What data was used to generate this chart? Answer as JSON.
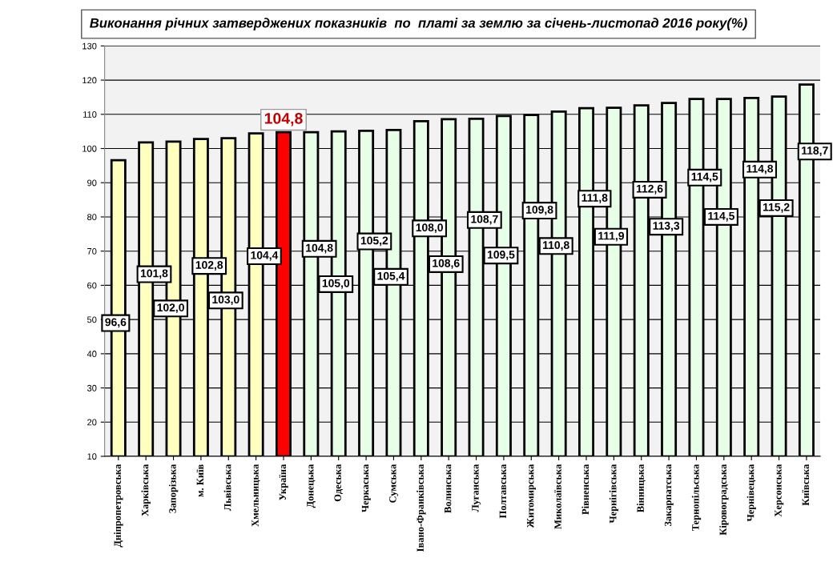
{
  "chart_data": {
    "type": "bar",
    "title": "Виконання річних затверджених показників  по  платі за землю за січень-листопад 2016 року(%)",
    "categories": [
      "Дніпропетровська",
      "Харківська",
      "Запорізька",
      "м. Київ",
      "Львівська",
      "Хмельницька",
      "Україна",
      "Донецька",
      "Одеська",
      "Черкаська",
      "Сумська",
      "Івано-Франківська",
      "Волинська",
      "Луганська",
      "Полтавська",
      "Житомирська",
      "Миколаївська",
      "Рівненська",
      "Чернігівська",
      "Вінницька",
      "Закарпатська",
      "Тернопільська",
      "Кіровоградська",
      "Чернівецька",
      "Херсонська",
      "Київська"
    ],
    "values": [
      96.6,
      101.8,
      102.0,
      102.8,
      103.0,
      104.4,
      104.8,
      104.8,
      105.0,
      105.2,
      105.4,
      108.0,
      108.6,
      108.7,
      109.5,
      109.8,
      110.8,
      111.8,
      111.9,
      112.6,
      113.3,
      114.5,
      114.5,
      114.8,
      115.2,
      118.7
    ],
    "colors": [
      "#ffffc0",
      "#ffffc0",
      "#ffffc0",
      "#ffffc0",
      "#ffffc0",
      "#ffffc0",
      "#ff0000",
      "#e6ffe6",
      "#e6ffe6",
      "#e6ffe6",
      "#e6ffe6",
      "#e6ffe6",
      "#e6ffe6",
      "#e6ffe6",
      "#e6ffe6",
      "#e6ffe6",
      "#e6ffe6",
      "#e6ffe6",
      "#e6ffe6",
      "#e6ffe6",
      "#e6ffe6",
      "#e6ffe6",
      "#e6ffe6",
      "#e6ffe6",
      "#e6ffe6",
      "#e6ffe6"
    ],
    "value_labels": [
      "96,6",
      "101,8",
      "102,0",
      "102,8",
      "103,0",
      "104,4",
      "104,8",
      "104,8",
      "105,0",
      "105,2",
      "105,4",
      "108,0",
      "108,6",
      "108,7",
      "109,5",
      "109,8",
      "110,8",
      "111,8",
      "111,9",
      "112,6",
      "113,3",
      "114,5",
      "114,5",
      "114,8",
      "115,2",
      "118,7"
    ],
    "ylim": [
      10,
      130
    ],
    "yticks": [
      10,
      20,
      30,
      40,
      50,
      60,
      70,
      80,
      90,
      100,
      110,
      120,
      130
    ],
    "grid": "y"
  }
}
